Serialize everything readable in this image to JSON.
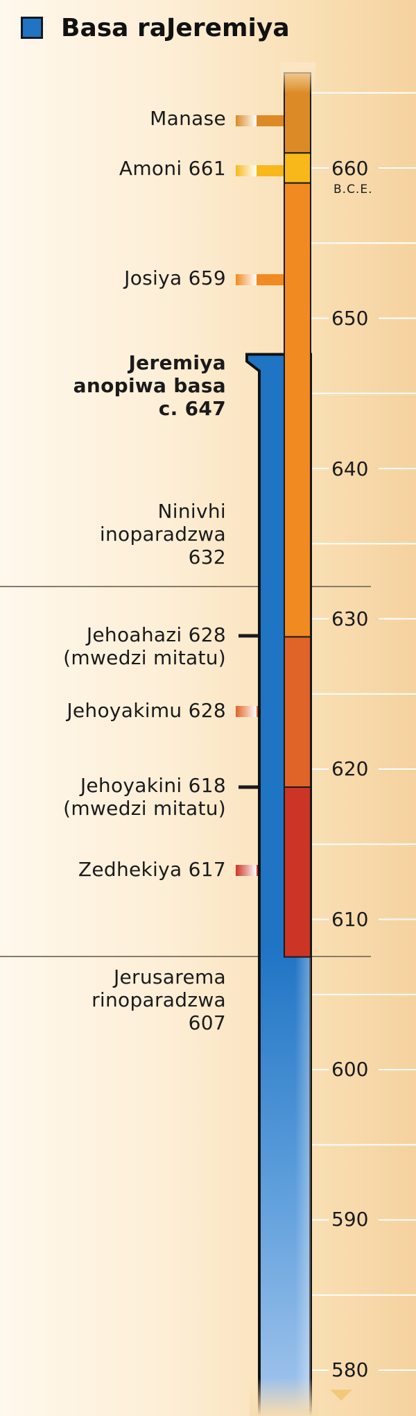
{
  "legend": {
    "label": "Basa raJeremiya",
    "color": "#1f74c4"
  },
  "scale_note": "B.C.E.",
  "years": [
    "660",
    "650",
    "640",
    "630",
    "620",
    "610",
    "600",
    "590",
    "580"
  ],
  "events": [
    {
      "id": "manase",
      "lines": [
        "Manase"
      ],
      "bold": false
    },
    {
      "id": "amoni",
      "lines": [
        "Amoni 661"
      ],
      "bold": false
    },
    {
      "id": "josiya",
      "lines": [
        "Josiya 659"
      ],
      "bold": false
    },
    {
      "id": "jeremiya",
      "lines": [
        "Jeremiya",
        "anopiwa basa",
        "c. 647"
      ],
      "bold": true
    },
    {
      "id": "ninivhi",
      "lines": [
        "Ninivhi",
        "inoparadzwa",
        "632"
      ],
      "bold": false
    },
    {
      "id": "jehoahazi",
      "lines": [
        "Jehoahazi 628",
        "(mwedzi mitatu)"
      ],
      "bold": false
    },
    {
      "id": "jehoyakimu",
      "lines": [
        "Jehoyakimu 628"
      ],
      "bold": false
    },
    {
      "id": "jehoyakini",
      "lines": [
        "Jehoyakini 618",
        "(mwedzi mitatu)"
      ],
      "bold": false
    },
    {
      "id": "zedhekiya",
      "lines": [
        "Zedhekiya 617"
      ],
      "bold": false
    },
    {
      "id": "jerusarema",
      "lines": [
        "Jerusarema",
        "rinoparadzwa",
        "607"
      ],
      "bold": false
    }
  ],
  "reigns": [
    {
      "name": "Manase",
      "from": 667,
      "to": 661,
      "color": "#dc8a25"
    },
    {
      "name": "Amoni",
      "from": 661,
      "to": 659,
      "color": "#f8b81a"
    },
    {
      "name": "Josiya",
      "from": 659,
      "to": 628.8,
      "color": "#f28a22"
    },
    {
      "name": "Jehoyakimu",
      "from": 628.8,
      "to": 618.8,
      "color": "#e06428"
    },
    {
      "name": "Zedhekiya",
      "from": 618.8,
      "to": 607.5,
      "color": "#cc3425"
    }
  ],
  "colors": {
    "jeremiah_bar": "#1f74c4"
  }
}
